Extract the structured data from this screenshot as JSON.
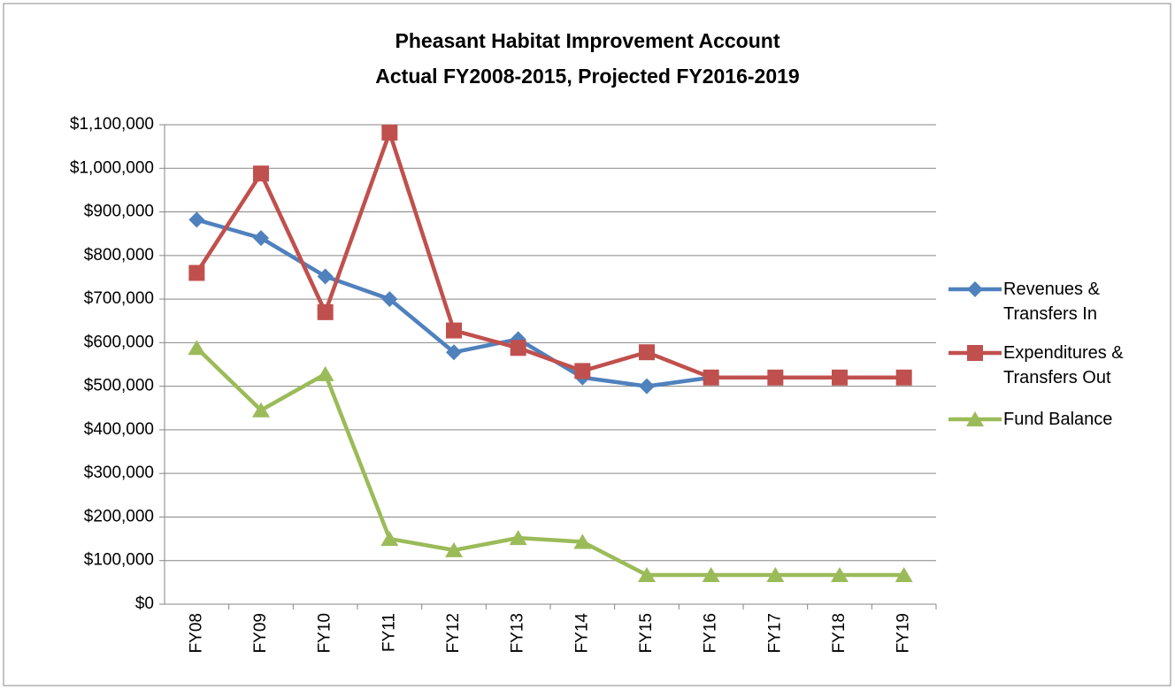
{
  "chart_data": {
    "type": "line",
    "title": "Pheasant Habitat Improvement Account",
    "subtitle": "Actual FY2008-2015, Projected FY2016-2019",
    "categories": [
      "FY08",
      "FY09",
      "FY10",
      "FY11",
      "FY12",
      "FY13",
      "FY14",
      "FY15",
      "FY16",
      "FY17",
      "FY18",
      "FY19"
    ],
    "series": [
      {
        "name": "Revenues & Transfers In",
        "color": "#4f81bd",
        "marker": "diamond",
        "values": [
          882000,
          840000,
          752000,
          700000,
          578000,
          608000,
          520000,
          500000,
          520000,
          520000,
          520000,
          520000
        ]
      },
      {
        "name": "Expenditures & Transfers Out",
        "color": "#c0504d",
        "marker": "square",
        "values": [
          760000,
          988000,
          670000,
          1082000,
          628000,
          588000,
          535000,
          578000,
          520000,
          520000,
          520000,
          520000
        ]
      },
      {
        "name": "Fund Balance",
        "color": "#9bbb59",
        "marker": "triangle",
        "values": [
          588000,
          445000,
          528000,
          150000,
          124000,
          152000,
          143000,
          67000,
          67000,
          67000,
          67000,
          67000
        ]
      }
    ],
    "ylim": [
      0,
      1100000
    ],
    "yticks": [
      {
        "value": 0,
        "label": "$0"
      },
      {
        "value": 100000,
        "label": "$100,000"
      },
      {
        "value": 200000,
        "label": "$200,000"
      },
      {
        "value": 300000,
        "label": "$300,000"
      },
      {
        "value": 400000,
        "label": "$400,000"
      },
      {
        "value": 500000,
        "label": "$500,000"
      },
      {
        "value": 600000,
        "label": "$600,000"
      },
      {
        "value": 700000,
        "label": "$700,000"
      },
      {
        "value": 800000,
        "label": "$800,000"
      },
      {
        "value": 900000,
        "label": "$900,000"
      },
      {
        "value": 1000000,
        "label": "$1,000,000"
      },
      {
        "value": 1100000,
        "label": "$1,100,000"
      }
    ],
    "grid": true,
    "legend": "right"
  }
}
